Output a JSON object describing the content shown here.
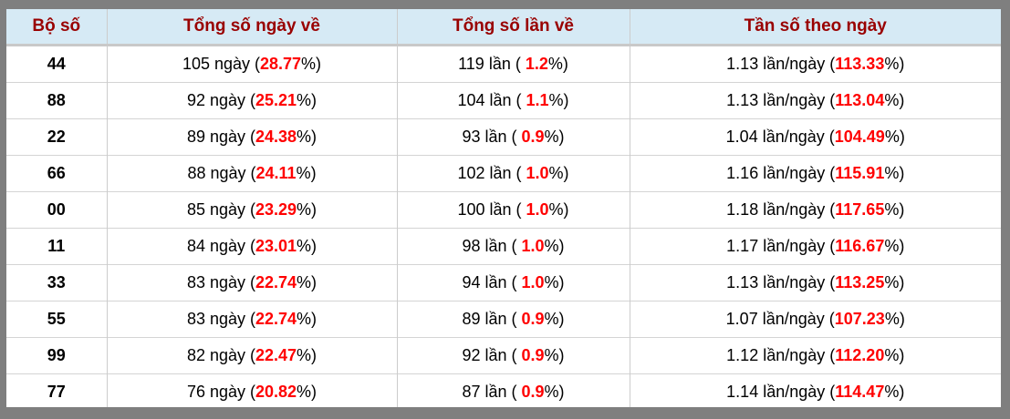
{
  "table": {
    "headers": [
      "Bộ số",
      "Tổng số ngày về",
      "Tổng số lần về",
      "Tần số theo ngày"
    ],
    "cell_suffix": "%)",
    "colors": {
      "frame_gray": "#7f7f7f",
      "header_bg": "#d6eaf5",
      "header_text": "#990000",
      "highlight_red": "#ff0000",
      "grid_line": "#cccccc",
      "body_text": "#000000"
    },
    "rows": [
      {
        "pair": "44",
        "days_prefix": "105 ngày (",
        "days_pct": "28.77",
        "times_prefix": "119 lần ( ",
        "times_pct": "1.2",
        "freq_prefix": "1.13 lần/ngày (",
        "freq_pct": "113.33"
      },
      {
        "pair": "88",
        "days_prefix": "92 ngày (",
        "days_pct": "25.21",
        "times_prefix": "104 lần ( ",
        "times_pct": "1.1",
        "freq_prefix": "1.13 lần/ngày (",
        "freq_pct": "113.04"
      },
      {
        "pair": "22",
        "days_prefix": "89 ngày (",
        "days_pct": "24.38",
        "times_prefix": "93 lần ( ",
        "times_pct": "0.9",
        "freq_prefix": "1.04 lần/ngày (",
        "freq_pct": "104.49"
      },
      {
        "pair": "66",
        "days_prefix": "88 ngày (",
        "days_pct": "24.11",
        "times_prefix": "102 lần ( ",
        "times_pct": "1.0",
        "freq_prefix": "1.16 lần/ngày (",
        "freq_pct": "115.91"
      },
      {
        "pair": "00",
        "days_prefix": "85 ngày (",
        "days_pct": "23.29",
        "times_prefix": "100 lần ( ",
        "times_pct": "1.0",
        "freq_prefix": "1.18 lần/ngày (",
        "freq_pct": "117.65"
      },
      {
        "pair": "11",
        "days_prefix": "84 ngày (",
        "days_pct": "23.01",
        "times_prefix": "98 lần ( ",
        "times_pct": "1.0",
        "freq_prefix": "1.17 lần/ngày (",
        "freq_pct": "116.67"
      },
      {
        "pair": "33",
        "days_prefix": "83 ngày (",
        "days_pct": "22.74",
        "times_prefix": "94 lần ( ",
        "times_pct": "1.0",
        "freq_prefix": "1.13 lần/ngày (",
        "freq_pct": "113.25"
      },
      {
        "pair": "55",
        "days_prefix": "83 ngày (",
        "days_pct": "22.74",
        "times_prefix": "89 lần ( ",
        "times_pct": "0.9",
        "freq_prefix": "1.07 lần/ngày (",
        "freq_pct": "107.23"
      },
      {
        "pair": "99",
        "days_prefix": "82 ngày (",
        "days_pct": "22.47",
        "times_prefix": "92 lần ( ",
        "times_pct": "0.9",
        "freq_prefix": "1.12 lần/ngày (",
        "freq_pct": "112.20"
      },
      {
        "pair": "77",
        "days_prefix": "76 ngày (",
        "days_pct": "20.82",
        "times_prefix": "87 lần ( ",
        "times_pct": "0.9",
        "freq_prefix": "1.14 lần/ngày (",
        "freq_pct": "114.47"
      }
    ]
  }
}
